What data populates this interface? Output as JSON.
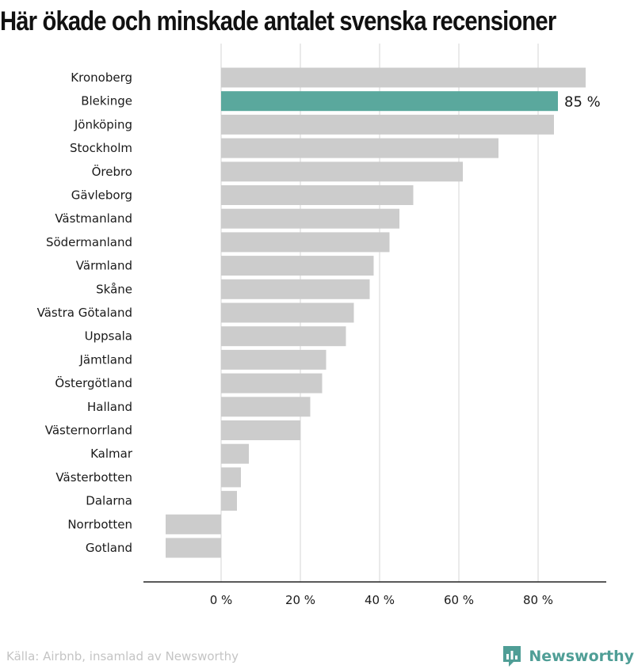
{
  "title": "Här ökade och minskade antalet svenska recensioner",
  "source": "Källa: Airbnb, insamlad av Newsworthy",
  "brand": "Newsworthy",
  "colors": {
    "bar": "#cccccc",
    "highlight": "#5aa89d",
    "grid": "#dddddd",
    "axis": "#222222",
    "brand": "#4f9e96"
  },
  "chart_data": {
    "type": "bar",
    "orientation": "horizontal",
    "categories": [
      "Kronoberg",
      "Blekinge",
      "Jönköping",
      "Stockholm",
      "Örebro",
      "Gävleborg",
      "Västmanland",
      "Södermanland",
      "Värmland",
      "Skåne",
      "Västra Götaland",
      "Uppsala",
      "Jämtland",
      "Östergötland",
      "Halland",
      "Västernorrland",
      "Kalmar",
      "Västerbotten",
      "Dalarna",
      "Norrbotten",
      "Gotland"
    ],
    "values": [
      92,
      85,
      84,
      70,
      61,
      48.5,
      45,
      42.5,
      38.5,
      37.5,
      33.5,
      31.5,
      26.5,
      25.5,
      22.5,
      20,
      7,
      5,
      4,
      -14,
      -14
    ],
    "highlight": "Blekinge",
    "annotations": [
      {
        "category": "Blekinge",
        "text": "85 %"
      }
    ],
    "xlim": [
      -20,
      97
    ],
    "xticks": [
      0,
      20,
      40,
      60,
      80
    ],
    "xtick_labels": [
      "0 %",
      "20 %",
      "40 %",
      "60 %",
      "80 %"
    ],
    "grid": true
  }
}
